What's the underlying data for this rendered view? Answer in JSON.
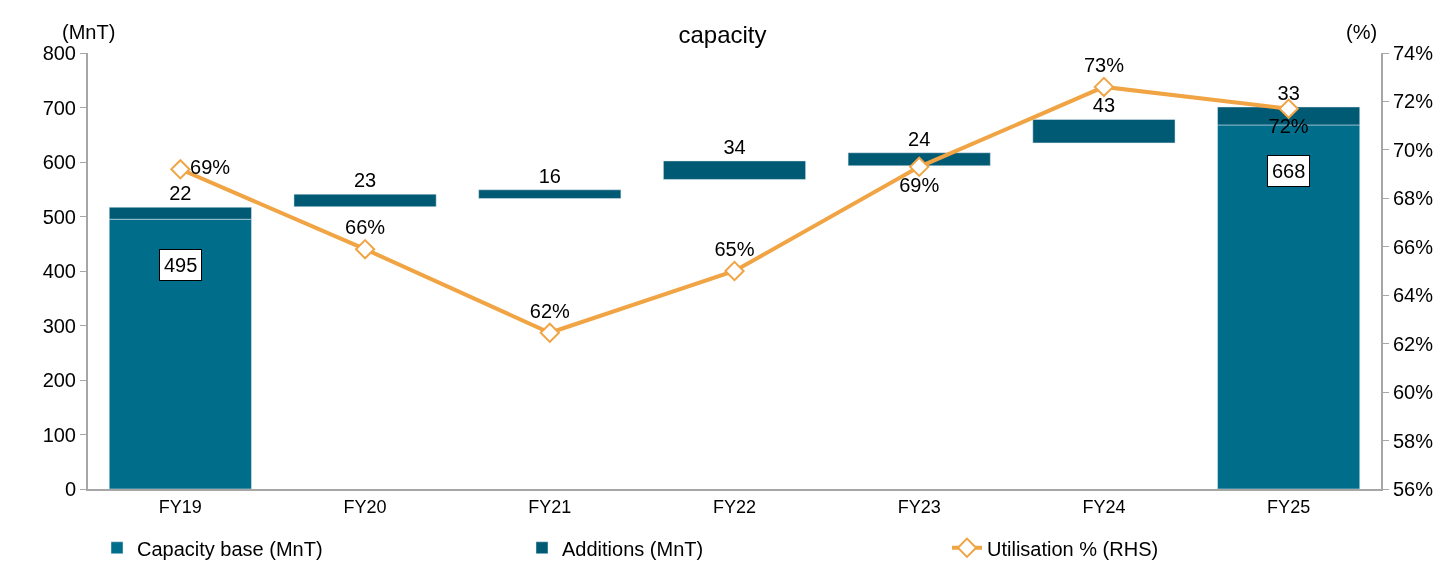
{
  "chart_data": {
    "type": "bar",
    "title": "capacity",
    "ylabel": "(MnT)",
    "y2label": "(%)",
    "categories": [
      "FY19",
      "FY20",
      "FY21",
      "FY22",
      "FY23",
      "FY24",
      "FY25"
    ],
    "series": [
      {
        "name": "Capacity base (MnT)",
        "color": "#006e8a",
        "values": [
          495,
          null,
          null,
          null,
          null,
          null,
          668
        ],
        "value_labels": [
          "495",
          null,
          null,
          null,
          null,
          null,
          "668"
        ]
      },
      {
        "name": "Additions (MnT)",
        "color": "#005a73",
        "values": [
          22,
          23,
          16,
          34,
          24,
          43,
          33
        ],
        "base": [
          495,
          518,
          533,
          568,
          593,
          635,
          668
        ],
        "value_labels": [
          "22",
          "23",
          "16",
          "34",
          "24",
          "43",
          "33"
        ]
      },
      {
        "name": "Utilisation % (RHS)",
        "type": "line",
        "axis": "y2",
        "color": "#f0a444",
        "marker": "diamond",
        "values": [
          69.2,
          65.9,
          62.45,
          65.0,
          69.3,
          72.6,
          71.7
        ],
        "value_labels": [
          "69%",
          "66%",
          "62%",
          "65%",
          "69%",
          "73%",
          "72%"
        ]
      }
    ],
    "ylim": [
      0,
      800
    ],
    "yticks": [
      0,
      100,
      200,
      300,
      400,
      500,
      600,
      700,
      800
    ],
    "y2lim": [
      56,
      74
    ],
    "y2ticks": [
      {
        "value": 56,
        "label": "56%"
      },
      {
        "value": 58,
        "label": "58%"
      },
      {
        "value": 60,
        "label": "60%"
      },
      {
        "value": 62,
        "label": "62%"
      },
      {
        "value": 64,
        "label": "64%"
      },
      {
        "value": 66,
        "label": "66%"
      },
      {
        "value": 68,
        "label": "68%"
      },
      {
        "value": 70,
        "label": "70%"
      },
      {
        "value": 72,
        "label": "72%"
      },
      {
        "value": 74,
        "label": "74%"
      }
    ],
    "legend": "bottom"
  }
}
